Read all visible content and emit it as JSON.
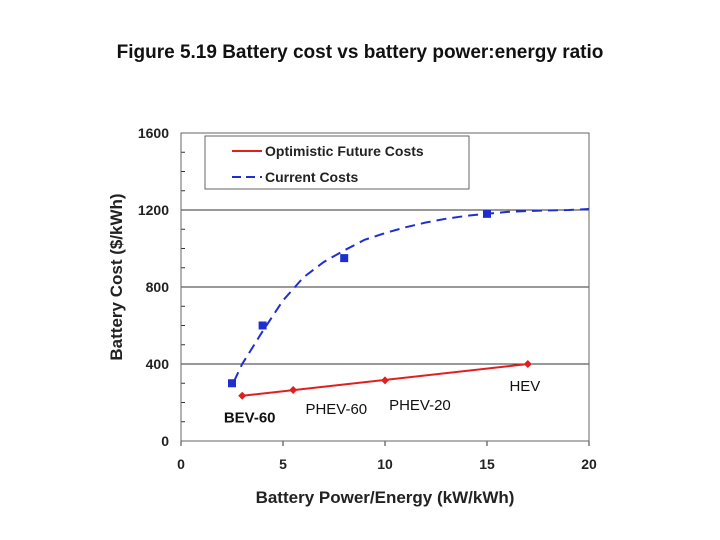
{
  "chart_data": {
    "type": "line",
    "title": "Figure 5.19 Battery cost vs battery power:energy ratio",
    "xlabel": "Battery Power/Energy (kW/kWh)",
    "ylabel": "Battery Cost ($/kWh)",
    "xlim": [
      0,
      20
    ],
    "ylim": [
      0,
      1600
    ],
    "xticks": [
      0,
      5,
      10,
      15,
      20
    ],
    "yticks": [
      0,
      400,
      800,
      1200,
      1600
    ],
    "grid": "horizontal",
    "legend_position": "top",
    "series": [
      {
        "name": "Optimistic Future Costs",
        "color": "#e0201f",
        "style": "solid",
        "marker": "diamond",
        "x": [
          3,
          5.5,
          10,
          17
        ],
        "y": [
          235,
          265,
          315,
          400
        ],
        "curve_x": [
          3,
          17
        ],
        "curve_y": [
          235,
          400
        ]
      },
      {
        "name": "Current Costs",
        "color": "#1f2fcf",
        "style": "dashed",
        "marker": "square",
        "x": [
          2.5,
          4,
          8,
          15
        ],
        "y": [
          300,
          600,
          950,
          1180
        ],
        "curve_x": [
          2.6,
          3,
          4,
          5,
          6,
          7,
          8,
          9,
          10,
          11,
          12,
          13,
          14,
          15,
          16,
          17,
          18,
          19,
          20
        ],
        "curve_y": [
          310,
          400,
          570,
          730,
          850,
          930,
          990,
          1045,
          1080,
          1110,
          1135,
          1155,
          1170,
          1180,
          1190,
          1195,
          1198,
          1200,
          1205
        ]
      }
    ],
    "annotations": [
      {
        "text": "BEV-60",
        "x": 2.1,
        "y": 95,
        "bold": true
      },
      {
        "text": "PHEV-60",
        "x": 6.1,
        "y": 140,
        "bold": false
      },
      {
        "text": "PHEV-20",
        "x": 10.2,
        "y": 160,
        "bold": false
      },
      {
        "text": "HEV",
        "x": 16.1,
        "y": 260,
        "bold": false
      }
    ]
  }
}
